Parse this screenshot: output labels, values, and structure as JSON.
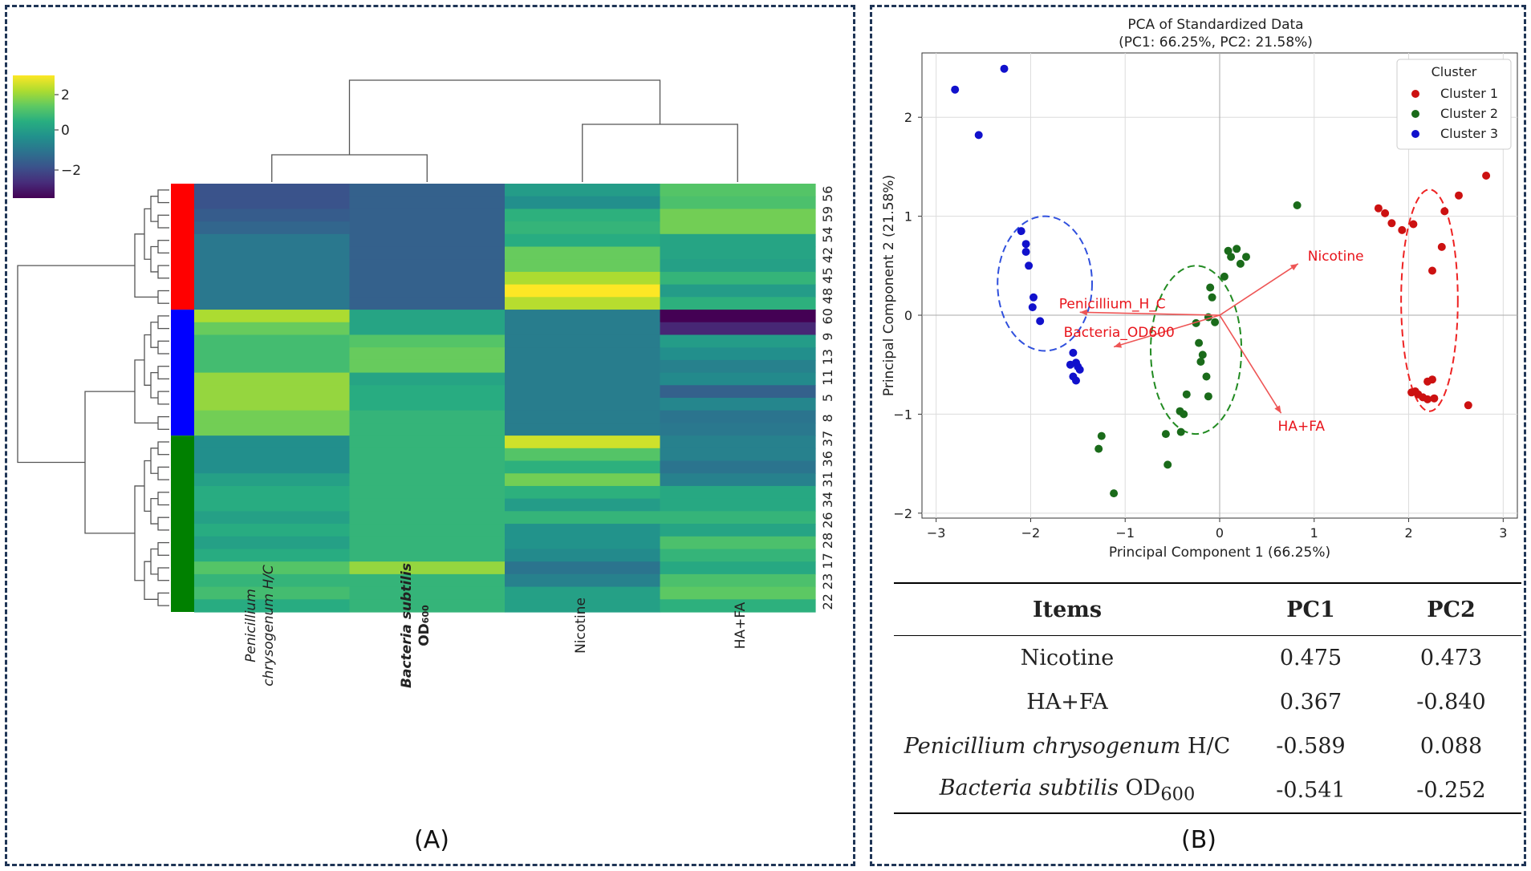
{
  "panel_a": {
    "label": "(A)",
    "colorbar": {
      "ticks": [
        "2",
        "0",
        "−2"
      ]
    },
    "columns": [
      "Penicillium chrysogenum H/C",
      "Bacteria subtilis OD600",
      "Nicotine",
      "HA+FA"
    ],
    "column_labels": {
      "col1_line1": "Penicillium",
      "col1_line2": "chrysogenum H/C",
      "col2_line1": "Bacteria subtilis",
      "col2_line2": "OD",
      "col2_sub": "600",
      "col3": "Nicotine",
      "col4": "HA+FA"
    },
    "row_tick_labels": [
      "56",
      "59",
      "54",
      "42",
      "45",
      "48",
      "60",
      "9",
      "13",
      "11",
      "5",
      "8",
      "37",
      "36",
      "31",
      "34",
      "26",
      "28",
      "17",
      "23",
      "22"
    ]
  },
  "panel_b": {
    "label": "(B)",
    "table": {
      "headers": [
        "Items",
        "PC1",
        "PC2"
      ],
      "rows": [
        {
          "item": "Nicotine",
          "pc1": "0.475",
          "pc2": "0.473"
        },
        {
          "item": "HA+FA",
          "pc1": "0.367",
          "pc2": "-0.840"
        },
        {
          "item_italic": "Penicillium chrysogenum",
          "item_rest": " H/C",
          "pc1": "-0.589",
          "pc2": "0.088"
        },
        {
          "item_italic": "Bacteria subtilis",
          "item_rest": " OD",
          "item_sub": "600",
          "pc1": "-0.541",
          "pc2": "-0.252"
        }
      ]
    }
  },
  "chart_data": [
    {
      "type": "heatmap",
      "title": "",
      "colormap": "viridis",
      "value_range": [
        -3,
        2.5
      ],
      "columns": [
        "Penicillium chrysogenum H/C",
        "Bacteria subtilis OD600",
        "Nicotine",
        "HA+FA"
      ],
      "cluster_colors": [
        "#ff0000",
        "#0000ff",
        "#008000"
      ],
      "row_cluster_counts": [
        10,
        10,
        14
      ],
      "rows": [
        [
          -1.6,
          -1.3,
          0.0,
          1.0
        ],
        [
          -1.6,
          -1.3,
          -0.3,
          0.9
        ],
        [
          -1.4,
          -1.3,
          0.5,
          1.3
        ],
        [
          -1.2,
          -1.3,
          0.6,
          1.3
        ],
        [
          -0.8,
          -1.3,
          0.4,
          0.2
        ],
        [
          -0.8,
          -1.3,
          1.2,
          0.2
        ],
        [
          -0.8,
          -1.3,
          1.2,
          0.1
        ],
        [
          -0.8,
          -1.3,
          1.8,
          0.6
        ],
        [
          -0.8,
          -1.3,
          2.6,
          0.0
        ],
        [
          -0.8,
          -1.3,
          1.9,
          0.5
        ],
        [
          1.8,
          0.2,
          -0.7,
          -3.0
        ],
        [
          1.2,
          0.2,
          -0.7,
          -2.4
        ],
        [
          0.8,
          1.0,
          -0.7,
          0.0
        ],
        [
          0.8,
          1.2,
          -0.7,
          -0.3
        ],
        [
          0.8,
          1.2,
          -0.7,
          -0.6
        ],
        [
          1.6,
          0.2,
          -0.7,
          -0.4
        ],
        [
          1.6,
          0.4,
          -0.7,
          -1.3
        ],
        [
          1.6,
          0.4,
          -0.7,
          -0.5
        ],
        [
          1.3,
          0.6,
          -0.7,
          -0.9
        ],
        [
          1.3,
          0.6,
          -0.7,
          -0.8
        ],
        [
          -0.3,
          0.6,
          2.1,
          -0.6
        ],
        [
          -0.3,
          0.6,
          1.0,
          -0.6
        ],
        [
          -0.3,
          0.6,
          0.5,
          -0.9
        ],
        [
          0.1,
          0.6,
          1.3,
          -0.6
        ],
        [
          0.4,
          0.6,
          0.5,
          0.3
        ],
        [
          0.4,
          0.6,
          0.0,
          0.3
        ],
        [
          0.1,
          0.6,
          0.6,
          0.6
        ],
        [
          0.4,
          0.6,
          -0.2,
          0.2
        ],
        [
          0.1,
          0.6,
          -0.2,
          0.9
        ],
        [
          0.4,
          0.6,
          -0.4,
          0.6
        ],
        [
          1.0,
          1.6,
          -0.9,
          0.3
        ],
        [
          0.6,
          0.6,
          -0.6,
          0.9
        ],
        [
          0.8,
          0.6,
          0.1,
          1.1
        ],
        [
          0.4,
          0.6,
          0.1,
          0.5
        ]
      ]
    },
    {
      "type": "scatter",
      "title": "PCA of Standardized Data",
      "subtitle": "(PC1: 66.25%, PC2: 21.58%)",
      "xlabel": "Principal Component 1 (66.25%)",
      "ylabel": "Principal Component 2 (21.58%)",
      "xlim": [
        -3.15,
        3.15
      ],
      "ylim": [
        -2.05,
        2.65
      ],
      "xticks": [
        -3,
        -2,
        -1,
        0,
        1,
        2,
        3
      ],
      "yticks": [
        -2,
        -1,
        0,
        1,
        2
      ],
      "xticklabels": [
        "−3",
        "−2",
        "−1",
        "0",
        "1",
        "2",
        "3"
      ],
      "yticklabels": [
        "−2",
        "−1",
        "0",
        "1",
        "2"
      ],
      "grid": true,
      "legend": {
        "title": "Cluster",
        "position": "top-right"
      },
      "series": [
        {
          "name": "Cluster 1",
          "color": "#cc1111",
          "points": [
            [
              2.82,
              1.41
            ],
            [
              2.53,
              1.21
            ],
            [
              2.38,
              1.05
            ],
            [
              1.68,
              1.08
            ],
            [
              1.75,
              1.03
            ],
            [
              1.82,
              0.93
            ],
            [
              1.93,
              0.86
            ],
            [
              2.05,
              0.92
            ],
            [
              2.35,
              0.69
            ],
            [
              2.25,
              0.45
            ],
            [
              2.25,
              -0.65
            ],
            [
              2.2,
              -0.67
            ],
            [
              2.07,
              -0.77
            ],
            [
              2.1,
              -0.8
            ],
            [
              2.03,
              -0.78
            ],
            [
              2.15,
              -0.83
            ],
            [
              2.2,
              -0.85
            ],
            [
              2.27,
              -0.84
            ],
            [
              2.63,
              -0.91
            ]
          ]
        },
        {
          "name": "Cluster 2",
          "color": "#1a6b1a",
          "points": [
            [
              0.82,
              1.11
            ],
            [
              0.09,
              0.65
            ],
            [
              0.12,
              0.59
            ],
            [
              0.18,
              0.67
            ],
            [
              0.28,
              0.59
            ],
            [
              0.22,
              0.52
            ],
            [
              0.05,
              0.39
            ],
            [
              -0.1,
              0.28
            ],
            [
              -0.08,
              0.18
            ],
            [
              -0.25,
              -0.08
            ],
            [
              -0.22,
              -0.28
            ],
            [
              -0.18,
              -0.4
            ],
            [
              -0.2,
              -0.47
            ],
            [
              -0.14,
              -0.62
            ],
            [
              -0.12,
              -0.82
            ],
            [
              -0.35,
              -0.8
            ],
            [
              -0.42,
              -0.97
            ],
            [
              -0.38,
              -1.0
            ],
            [
              -0.57,
              -1.2
            ],
            [
              -0.41,
              -1.18
            ],
            [
              -0.55,
              -1.51
            ],
            [
              -1.25,
              -1.22
            ],
            [
              -1.28,
              -1.35
            ],
            [
              -1.12,
              -1.8
            ],
            [
              -0.05,
              -0.07
            ],
            [
              -0.12,
              -0.02
            ]
          ]
        },
        {
          "name": "Cluster 3",
          "color": "#1111cc",
          "points": [
            [
              -2.8,
              2.28
            ],
            [
              -2.28,
              2.49
            ],
            [
              -2.55,
              1.82
            ],
            [
              -2.1,
              0.85
            ],
            [
              -2.05,
              0.72
            ],
            [
              -2.05,
              0.64
            ],
            [
              -2.02,
              0.5
            ],
            [
              -1.97,
              0.18
            ],
            [
              -1.98,
              0.08
            ],
            [
              -1.9,
              -0.06
            ],
            [
              -1.55,
              -0.38
            ],
            [
              -1.52,
              -0.48
            ],
            [
              -1.5,
              -0.52
            ],
            [
              -1.48,
              -0.55
            ],
            [
              -1.55,
              -0.62
            ],
            [
              -1.52,
              -0.66
            ],
            [
              -1.58,
              -0.5
            ]
          ]
        }
      ],
      "ellipses": [
        {
          "color": "#3050dd",
          "center": [
            -1.85,
            0.32
          ],
          "rx": 0.5,
          "ry": 0.68
        },
        {
          "color": "#228b22",
          "center": [
            -0.25,
            -0.35
          ],
          "rx": 0.48,
          "ry": 0.85
        },
        {
          "color": "#ee2222",
          "center": [
            2.22,
            0.15
          ],
          "rx": 0.3,
          "ry": 1.12
        }
      ],
      "loadings": [
        {
          "name": "Nicotine",
          "x": 0.83,
          "y": 0.52
        },
        {
          "name": "HA+FA",
          "x": 0.65,
          "y": -0.99
        },
        {
          "name": "Penicillium_H_C",
          "x": -1.48,
          "y": 0.03
        },
        {
          "name": "Bacteria_OD600",
          "x": -1.12,
          "y": -0.32
        }
      ]
    }
  ]
}
